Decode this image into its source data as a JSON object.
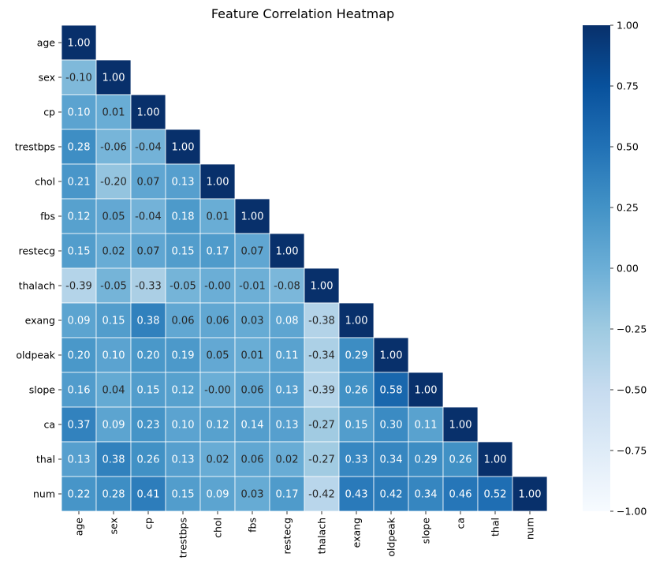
{
  "chart_data": {
    "type": "heatmap",
    "title": "Feature Correlation Heatmap",
    "xlabel": "",
    "ylabel": "",
    "labels": [
      "age",
      "sex",
      "cp",
      "trestbps",
      "chol",
      "fbs",
      "restecg",
      "thalach",
      "exang",
      "oldpeak",
      "slope",
      "ca",
      "thal",
      "num"
    ],
    "matrix_lower": [
      [
        "1.00"
      ],
      [
        "-0.10",
        "1.00"
      ],
      [
        "0.10",
        "0.01",
        "1.00"
      ],
      [
        "0.28",
        "-0.06",
        "-0.04",
        "1.00"
      ],
      [
        "0.21",
        "-0.20",
        "0.07",
        "0.13",
        "1.00"
      ],
      [
        "0.12",
        "0.05",
        "-0.04",
        "0.18",
        "0.01",
        "1.00"
      ],
      [
        "0.15",
        "0.02",
        "0.07",
        "0.15",
        "0.17",
        "0.07",
        "1.00"
      ],
      [
        "-0.39",
        "-0.05",
        "-0.33",
        "-0.05",
        "-0.00",
        "-0.01",
        "-0.08",
        "1.00"
      ],
      [
        "0.09",
        "0.15",
        "0.38",
        "0.06",
        "0.06",
        "0.03",
        "0.08",
        "-0.38",
        "1.00"
      ],
      [
        "0.20",
        "0.10",
        "0.20",
        "0.19",
        "0.05",
        "0.01",
        "0.11",
        "-0.34",
        "0.29",
        "1.00"
      ],
      [
        "0.16",
        "0.04",
        "0.15",
        "0.12",
        "-0.00",
        "0.06",
        "0.13",
        "-0.39",
        "0.26",
        "0.58",
        "1.00"
      ],
      [
        "0.37",
        "0.09",
        "0.23",
        "0.10",
        "0.12",
        "0.14",
        "0.13",
        "-0.27",
        "0.15",
        "0.30",
        "0.11",
        "1.00"
      ],
      [
        "0.13",
        "0.38",
        "0.26",
        "0.13",
        "0.02",
        "0.06",
        "0.02",
        "-0.27",
        "0.33",
        "0.34",
        "0.29",
        "0.26",
        "1.00"
      ],
      [
        "0.22",
        "0.28",
        "0.41",
        "0.15",
        "0.09",
        "0.03",
        "0.17",
        "-0.42",
        "0.43",
        "0.42",
        "0.34",
        "0.46",
        "0.52",
        "1.00"
      ]
    ],
    "vmin": -1.0,
    "vmax": 1.0,
    "colormap": "Blues",
    "colorbar_ticks": [
      "1.00",
      "0.75",
      "0.50",
      "0.25",
      "0.00",
      "−0.25",
      "−0.50",
      "−0.75",
      "−1.00"
    ],
    "colorbar_values": [
      1.0,
      0.75,
      0.5,
      0.25,
      0.0,
      -0.25,
      -0.5,
      -0.75,
      -1.0
    ],
    "grid": false
  }
}
